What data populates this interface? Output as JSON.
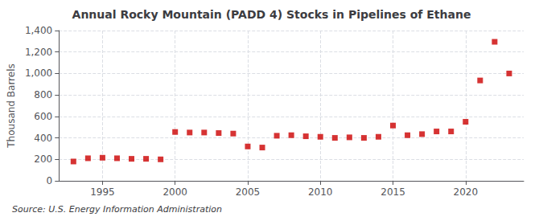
{
  "chart_data": {
    "type": "scatter",
    "title": "Annual Rocky Mountain (PADD 4) Stocks in Pipelines of Ethane",
    "ylabel": "Thousand Barrels",
    "source": "Source: U.S. Energy Information Administration",
    "x": [
      1993,
      1994,
      1995,
      1996,
      1997,
      1998,
      1999,
      2000,
      2001,
      2002,
      2003,
      2004,
      2005,
      2006,
      2007,
      2008,
      2009,
      2010,
      2011,
      2012,
      2013,
      2014,
      2015,
      2016,
      2017,
      2018,
      2019,
      2020,
      2021,
      2022,
      2023
    ],
    "values": [
      180,
      210,
      215,
      210,
      205,
      205,
      200,
      455,
      450,
      450,
      445,
      440,
      320,
      310,
      420,
      425,
      415,
      410,
      400,
      405,
      400,
      410,
      515,
      425,
      435,
      460,
      460,
      550,
      935,
      1295,
      1000
    ],
    "color": "#cc0000",
    "marker": "square",
    "xlim": [
      1992,
      2024
    ],
    "xticks": [
      1995,
      2000,
      2005,
      2010,
      2015,
      2020
    ],
    "ylim": [
      0,
      1400
    ],
    "yticks": [
      0,
      200,
      400,
      600,
      800,
      {
        "value": 1000,
        "label": "1,000"
      },
      {
        "value": 1200,
        "label": "1,200"
      },
      {
        "value": 1400,
        "label": "1,400"
      }
    ],
    "grid": true
  }
}
